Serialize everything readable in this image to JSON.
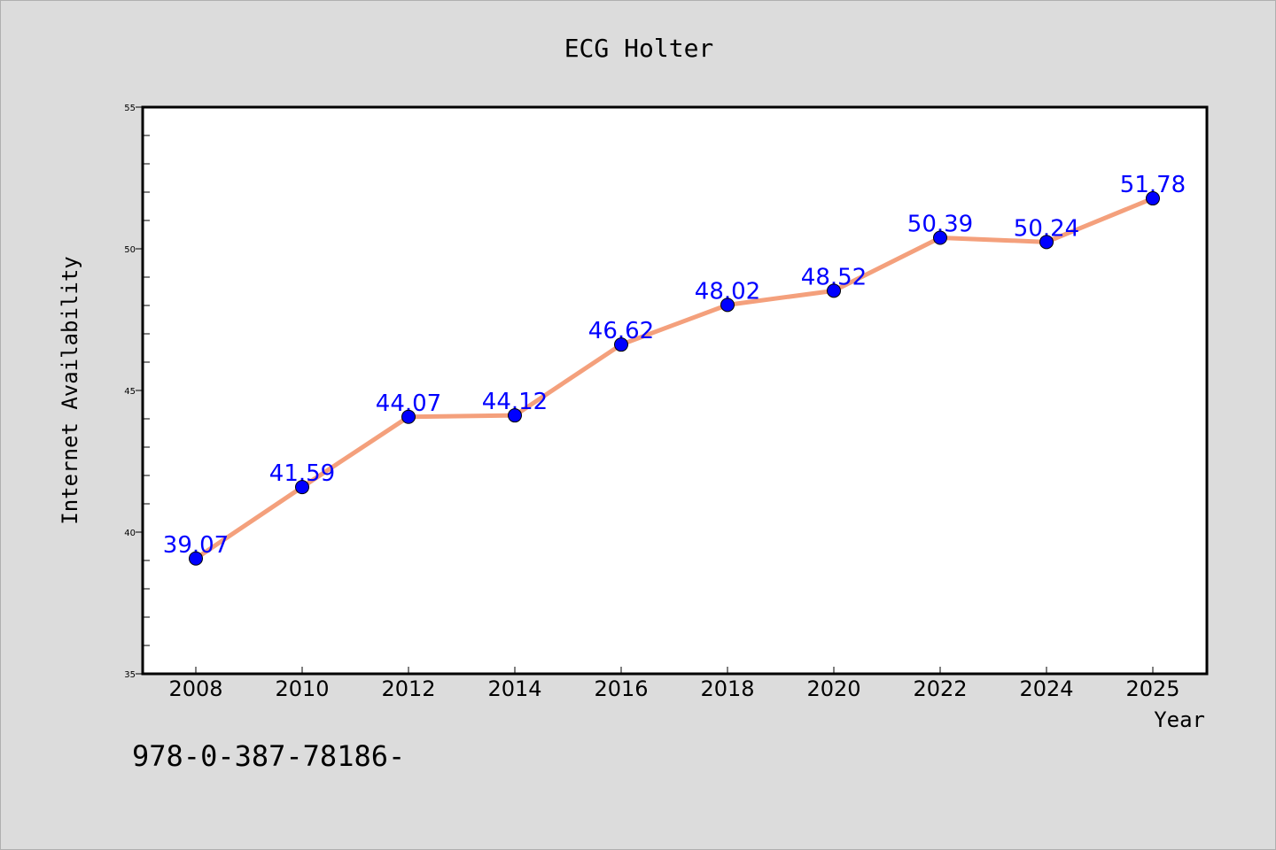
{
  "chart_data": {
    "type": "line",
    "title": "ECG Holter",
    "xlabel": "Year",
    "ylabel": "Internet Availability",
    "categories": [
      "2008",
      "2010",
      "2012",
      "2014",
      "2016",
      "2018",
      "2020",
      "2022",
      "2024",
      "2025"
    ],
    "series": [
      {
        "values": [
          39.07,
          41.59,
          44.07,
          44.12,
          46.62,
          48.02,
          48.52,
          50.39,
          50.24,
          51.78
        ],
        "data_labels": [
          "39.07",
          "41.59",
          "44.07",
          "44.12",
          "46.62",
          "48.02",
          "48.52",
          "50.39",
          "50.24",
          "51.78"
        ]
      }
    ],
    "ylim": [
      35,
      55
    ],
    "yticks": [
      "35",
      "40",
      "45",
      "50",
      "55"
    ],
    "grid": false,
    "legend": "none",
    "colors": {
      "line": "#f4a07c",
      "marker": "#0000ff",
      "label": "#0000ff",
      "background": "#dcdcdc",
      "plot_area": "#ffffff"
    }
  },
  "footnote": "978-0-387-78186-"
}
